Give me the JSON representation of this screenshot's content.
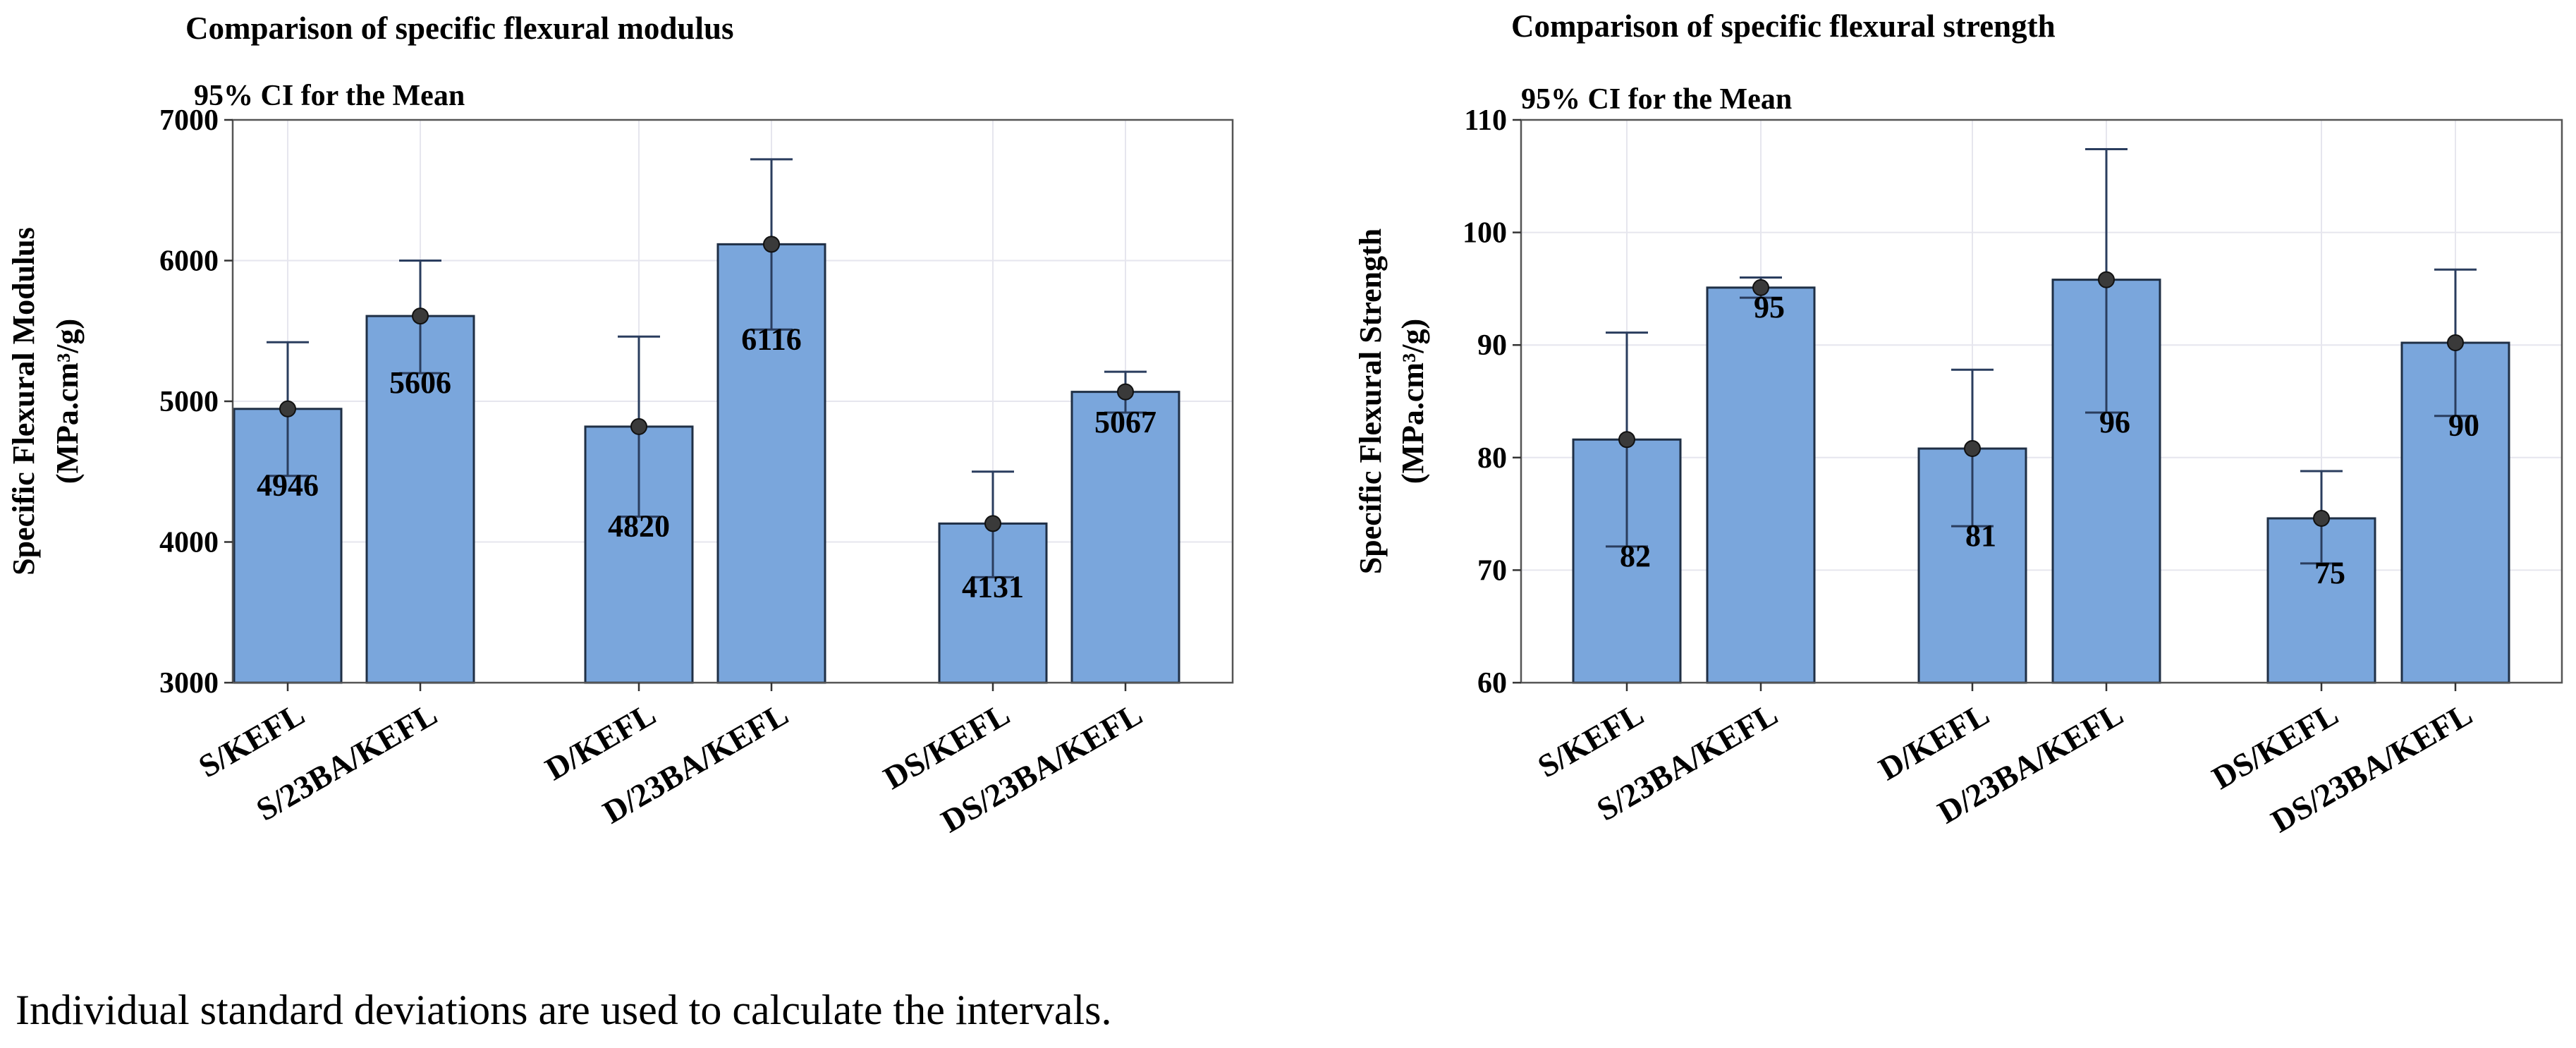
{
  "footnote": "Individual standard deviations are used to calculate the intervals.",
  "colors": {
    "bar": "#7aa6dc",
    "bar_edge": "#1f2f45",
    "error": "#2a3d5e",
    "point": "#3a3a3a",
    "grid": "#e6e6ee"
  },
  "chart_data": [
    {
      "type": "bar",
      "title": "Comparison of specific flexural modulus",
      "subtitle": "95% CI for the Mean",
      "xlabel": "",
      "ylabel": "Specific Flexural Modulus",
      "ylabel_unit": "(MPa.cm³/g)",
      "ylim": [
        3000,
        7000
      ],
      "yticks": [
        3000,
        4000,
        5000,
        6000,
        7000
      ],
      "grid": true,
      "groups": [
        [
          "S/KEFL",
          "S/23BA/KEFL"
        ],
        [
          "D/KEFL",
          "D/23BA/KEFL"
        ],
        [
          "DS/KEFL",
          "DS/23BA/KEFL"
        ]
      ],
      "categories": [
        "S/KEFL",
        "S/23BA/KEFL",
        "D/KEFL",
        "D/23BA/KEFL",
        "DS/KEFL",
        "DS/23BA/KEFL"
      ],
      "values": [
        4946,
        5606,
        4820,
        6116,
        4131,
        5067
      ],
      "data_labels": [
        "4946",
        "5606",
        "4820",
        "6116",
        "4131",
        "5067"
      ],
      "ci_lower": [
        4470,
        5200,
        4180,
        5510,
        3750,
        4920
      ],
      "ci_upper": [
        5420,
        6000,
        5460,
        6720,
        4500,
        5210
      ]
    },
    {
      "type": "bar",
      "title": "Comparison of specific flexural strength",
      "subtitle": "95% CI for the Mean",
      "xlabel": "",
      "ylabel": "Specific Flexural Strength",
      "ylabel_unit": "(MPa.cm³/g)",
      "ylim": [
        60,
        110
      ],
      "yticks": [
        60,
        70,
        80,
        90,
        100,
        110
      ],
      "grid": true,
      "groups": [
        [
          "S/KEFL",
          "S/23BA/KEFL"
        ],
        [
          "D/KEFL",
          "D/23BA/KEFL"
        ],
        [
          "DS/KEFL",
          "DS/23BA/KEFL"
        ]
      ],
      "categories": [
        "S/KEFL",
        "S/23BA/KEFL",
        "D/KEFL",
        "D/23BA/KEFL",
        "DS/KEFL",
        "DS/23BA/KEFL"
      ],
      "values": [
        81.6,
        95.1,
        80.8,
        95.8,
        74.6,
        90.2
      ],
      "data_labels": [
        "82",
        "95",
        "81",
        "96",
        "75",
        "90"
      ],
      "ci_lower": [
        72.1,
        94.2,
        73.9,
        84.0,
        70.6,
        83.7
      ],
      "ci_upper": [
        91.1,
        96.0,
        87.8,
        107.4,
        78.8,
        96.7
      ]
    }
  ]
}
